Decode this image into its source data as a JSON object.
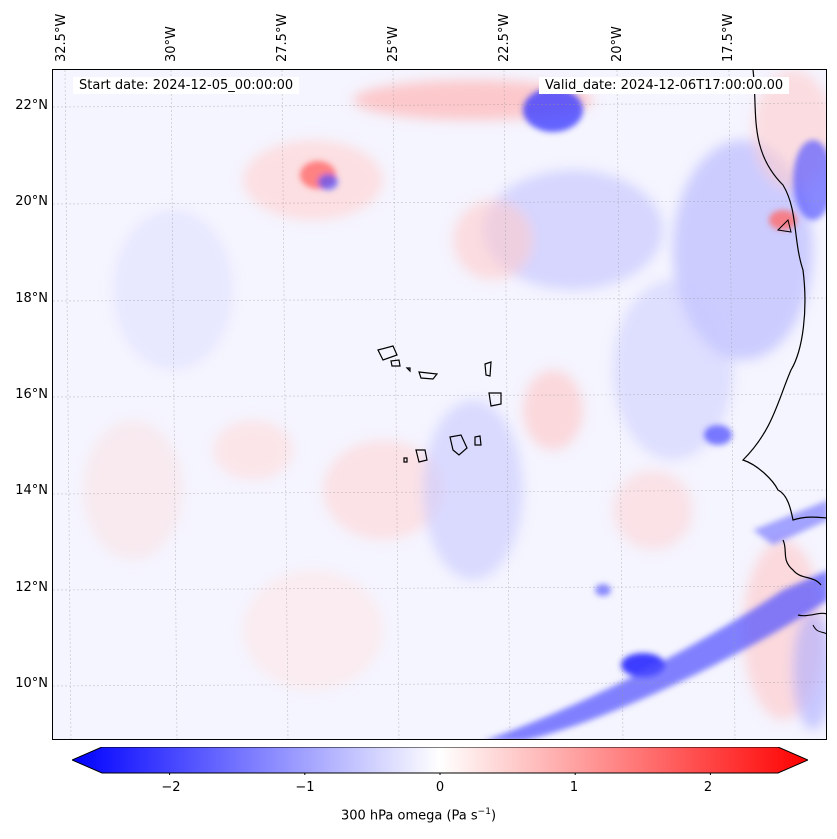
{
  "map": {
    "start_date": "Start date: 2024-12-05_00:00:00",
    "valid_date": "Valid_date: 2024-12-06T17:00:00.00",
    "lon_labels": [
      "32.5°W",
      "30°W",
      "27.5°W",
      "25°W",
      "22.5°W",
      "20°W",
      "17.5°W"
    ],
    "lat_labels": [
      "22°N",
      "20°N",
      "18°N",
      "16°N",
      "14°N",
      "12°N",
      "10°N"
    ],
    "extent": {
      "lon_min": -33.0,
      "lon_max": -15.3,
      "lat_min": 8.9,
      "lat_max": 22.8
    }
  },
  "colorbar": {
    "label_main": "300 hPa omega (Pa s",
    "label_exp": "−1",
    "label_end": ")",
    "ticks": [
      "−2",
      "−1",
      "0",
      "1",
      "2"
    ],
    "tick_values": [
      -2,
      -1,
      0,
      1,
      2
    ],
    "range": [
      -2.5,
      2.5
    ],
    "colormap": "bwr"
  },
  "colors": {
    "negative": "#0000ff",
    "neutral": "#ffffff",
    "positive": "#ff0000"
  }
}
